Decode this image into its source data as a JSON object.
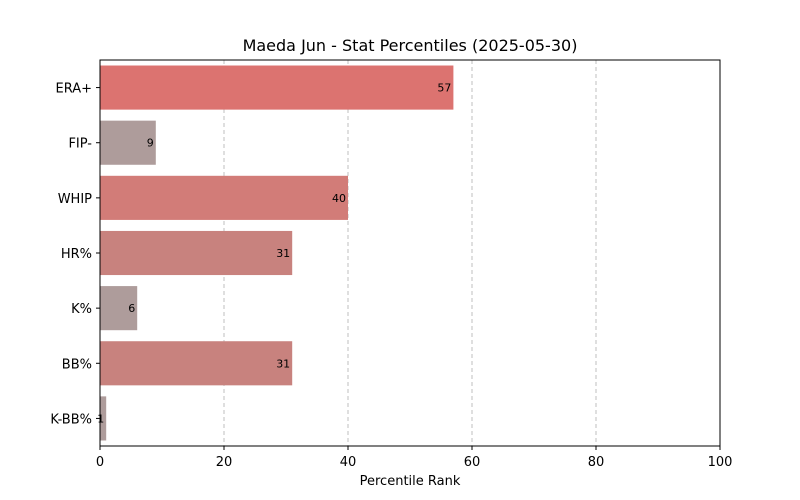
{
  "chart_data": {
    "type": "bar",
    "orientation": "horizontal",
    "title": "Maeda Jun - Stat Percentiles (2025-05-30)",
    "xlabel": "Percentile Rank",
    "ylabel": "",
    "xlim": [
      0,
      100
    ],
    "xticks": [
      "0",
      "20",
      "40",
      "60",
      "80",
      "100"
    ],
    "grid": "vertical dashed",
    "categories": [
      "ERA+",
      "FIP-",
      "WHIP",
      "HR%",
      "K%",
      "BB%",
      "K-BB%"
    ],
    "values": [
      57,
      9,
      40,
      31,
      6,
      31,
      1
    ],
    "data_labels": [
      "57",
      "9",
      "40",
      "31",
      "6",
      "31",
      "1"
    ],
    "colors": [
      "#dc7370",
      "#ae9c9b",
      "#d27c78",
      "#c8827e",
      "#ae9c9b",
      "#c8827e",
      "#ae9c9b"
    ]
  }
}
